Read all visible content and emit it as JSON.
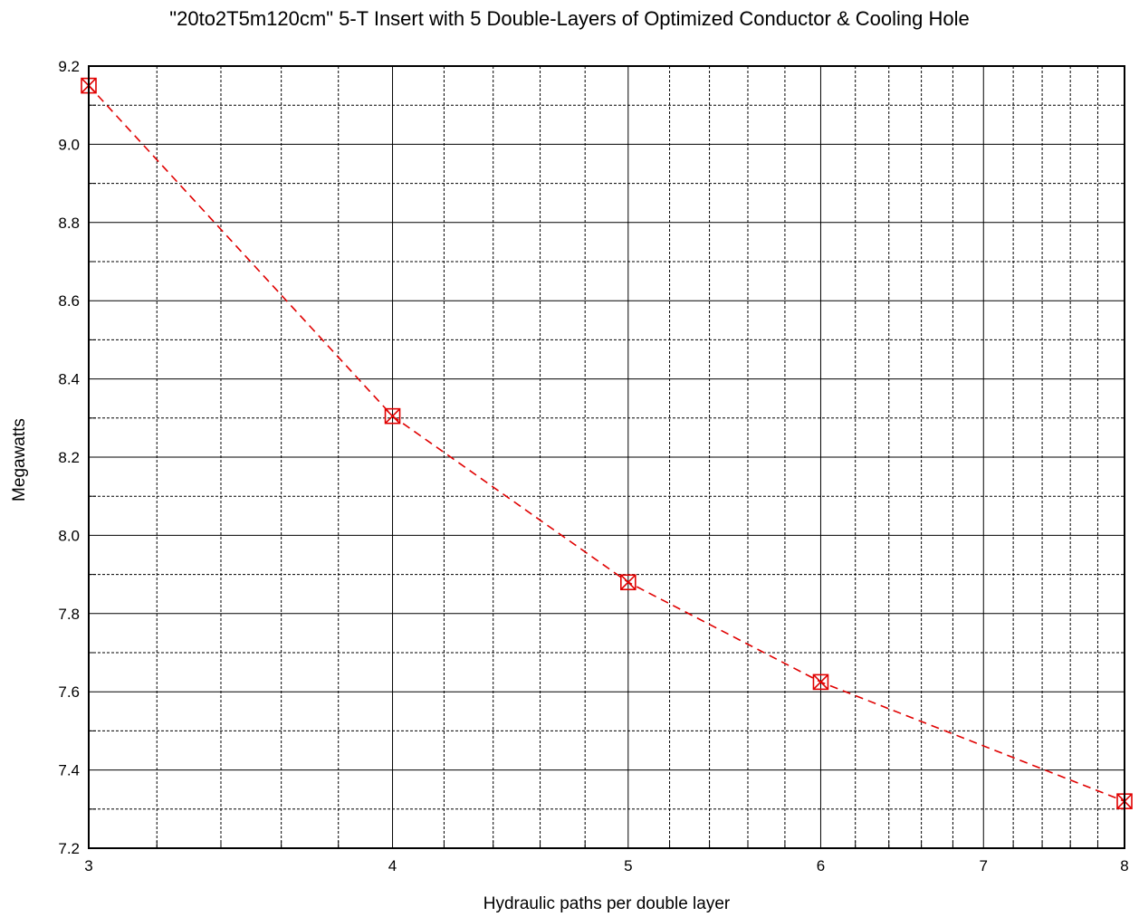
{
  "chart_data": {
    "type": "line",
    "title": "\"20to2T5m120cm\" 5-T Insert with 5 Double-Layers of Optimized Conductor & Cooling Hole",
    "xlabel": "Hydraulic paths per double layer",
    "ylabel": "Megawatts",
    "x_scale": "log",
    "xlim": [
      3,
      8
    ],
    "ylim": [
      7.2,
      9.2
    ],
    "x_ticks": [
      "3",
      "4",
      "5",
      "6",
      "7",
      "8"
    ],
    "y_ticks": [
      "7.2",
      "7.4",
      "7.6",
      "7.8",
      "8.0",
      "8.2",
      "8.4",
      "8.6",
      "8.8",
      "9.0",
      "9.2"
    ],
    "grid": true,
    "series": [
      {
        "color": "#e00000",
        "line_style": "dashed",
        "marker": "boxed-x",
        "x": [
          3,
          4,
          5,
          6,
          8
        ],
        "y": [
          9.15,
          8.305,
          7.88,
          7.625,
          7.32
        ]
      }
    ]
  }
}
